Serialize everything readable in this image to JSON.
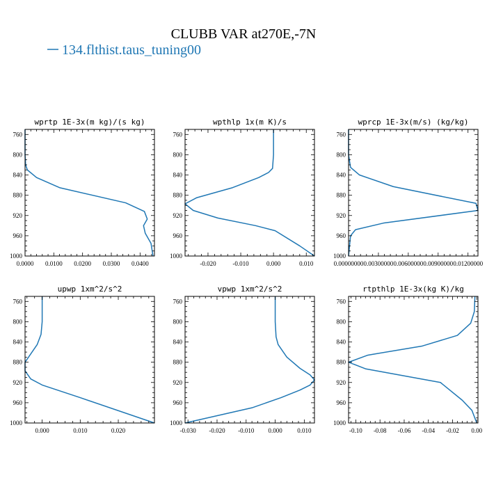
{
  "figure": {
    "title": "CLUBB VAR at270E,-7N",
    "legend_label": "134.flthist.taus_tuning00",
    "legend_color": "#1f77b4"
  },
  "chart_data": [
    {
      "type": "line",
      "title": "wprtp  1E-3x(m kg)/(s kg)",
      "xlim": [
        0.0,
        0.045
      ],
      "ylim": [
        1000,
        750
      ],
      "xticks": [
        0.0,
        0.01,
        0.02,
        0.03,
        0.04
      ],
      "xtick_labels": [
        "0.0000",
        "0.0100",
        "0.0200",
        "0.0300",
        "0.0400"
      ],
      "yticks": [
        760,
        800,
        840,
        880,
        920,
        960,
        1000
      ],
      "ytick_labels": [
        "760",
        "800",
        "840",
        "880",
        "920",
        "960",
        "1000"
      ],
      "series": [
        {
          "color": "#1f77b4",
          "x": [
            0.0,
            0.0,
            0.0002,
            0.0008,
            0.004,
            0.012,
            0.035,
            0.0415,
            0.0425,
            0.0412,
            0.0418,
            0.0438,
            0.0445
          ],
          "y": [
            750,
            800,
            820,
            830,
            845,
            865,
            895,
            912,
            927,
            940,
            955,
            975,
            1000
          ]
        }
      ]
    },
    {
      "type": "line",
      "title": "wpthlp  1x(m K)/s",
      "xlim": [
        -0.027,
        0.0125
      ],
      "ylim": [
        1000,
        750
      ],
      "xticks": [
        -0.02,
        -0.01,
        0.0,
        0.01
      ],
      "xtick_labels": [
        "-0.020",
        "-0.010",
        "0.000",
        "0.010"
      ],
      "yticks": [
        760,
        800,
        840,
        880,
        920,
        960,
        1000
      ],
      "ytick_labels": [
        "760",
        "800",
        "840",
        "880",
        "920",
        "960",
        "1000"
      ],
      "series": [
        {
          "color": "#1f77b4",
          "x": [
            0.0,
            0.0,
            -0.0003,
            -0.0015,
            -0.0045,
            -0.0125,
            -0.0235,
            -0.027,
            -0.0245,
            -0.017,
            -0.0055,
            0.0005,
            0.008,
            0.0125
          ],
          "y": [
            750,
            800,
            827,
            835,
            845,
            865,
            885,
            897,
            910,
            925,
            940,
            950,
            980,
            1000
          ]
        }
      ]
    },
    {
      "type": "line",
      "title": "wprcp  1E-3x(m/s) (kg/kg)",
      "xlim": [
        0.0,
        0.013
      ],
      "ylim": [
        1000,
        750
      ],
      "xticks": [
        0.0,
        0.003,
        0.006,
        0.009,
        0.012
      ],
      "xtick_labels": [
        "0.00000000",
        "0.00300000",
        "0.00600000",
        "0.00900000",
        "0.01200000"
      ],
      "yticks": [
        760,
        800,
        840,
        880,
        920,
        960,
        1000
      ],
      "ytick_labels": [
        "760",
        "800",
        "840",
        "880",
        "920",
        "960",
        "1000"
      ],
      "series": [
        {
          "color": "#1f77b4",
          "x": [
            0.0,
            0.0,
            0.0002,
            0.0011,
            0.0045,
            0.0128,
            0.013,
            0.0035,
            0.0007,
            0.0002,
            0.0
          ],
          "y": [
            750,
            800,
            825,
            840,
            863,
            896,
            910,
            935,
            948,
            960,
            1000
          ]
        }
      ]
    },
    {
      "type": "line",
      "title": "upwp  1xm^2/s^2",
      "xlim": [
        -0.0045,
        0.0295
      ],
      "ylim": [
        1000,
        750
      ],
      "xticks": [
        0.0,
        0.01,
        0.02
      ],
      "xtick_labels": [
        "0.000",
        "0.010",
        "0.020"
      ],
      "yticks": [
        760,
        800,
        840,
        880,
        920,
        960,
        1000
      ],
      "ytick_labels": [
        "760",
        "800",
        "840",
        "880",
        "920",
        "960",
        "1000"
      ],
      "series": [
        {
          "color": "#1f77b4",
          "x": [
            0.0,
            0.0,
            -0.0003,
            -0.0013,
            -0.0045,
            -0.0045,
            -0.003,
            0.0,
            0.01,
            0.0295
          ],
          "y": [
            750,
            800,
            825,
            845,
            880,
            897,
            913,
            925,
            950,
            1000
          ]
        }
      ]
    },
    {
      "type": "line",
      "title": "vpwp  1xm^2/s^2",
      "xlim": [
        -0.031,
        0.0135
      ],
      "ylim": [
        1000,
        750
      ],
      "xticks": [
        -0.03,
        -0.02,
        -0.01,
        0.0,
        0.01
      ],
      "xtick_labels": [
        "-0.030",
        "-0.020",
        "-0.010",
        "0.000",
        "0.010"
      ],
      "yticks": [
        760,
        800,
        840,
        880,
        920,
        960,
        1000
      ],
      "ytick_labels": [
        "760",
        "800",
        "840",
        "880",
        "920",
        "960",
        "1000"
      ],
      "series": [
        {
          "color": "#1f77b4",
          "x": [
            0.0,
            0.0,
            0.0003,
            0.001,
            0.004,
            0.0085,
            0.012,
            0.0135,
            0.012,
            0.0085,
            0.002,
            -0.008,
            -0.031
          ],
          "y": [
            750,
            800,
            830,
            845,
            870,
            892,
            905,
            915,
            925,
            935,
            950,
            970,
            1000
          ]
        }
      ]
    },
    {
      "type": "line",
      "title": "rtpthlp  1E-3x(kg K)/kg",
      "xlim": [
        -0.106,
        0.001
      ],
      "ylim": [
        1000,
        750
      ],
      "xticks": [
        -0.1,
        -0.08,
        -0.06,
        -0.04,
        -0.02,
        0.0
      ],
      "xtick_labels": [
        "-0.10",
        "-0.08",
        "-0.06",
        "-0.04",
        "-0.02",
        "0.00"
      ],
      "yticks": [
        760,
        800,
        840,
        880,
        920,
        960,
        1000
      ],
      "ytick_labels": [
        "760",
        "800",
        "840",
        "880",
        "920",
        "960",
        "1000"
      ],
      "series": [
        {
          "color": "#1f77b4",
          "x": [
            -0.0015,
            -0.002,
            -0.005,
            -0.016,
            -0.045,
            -0.09,
            -0.106,
            -0.092,
            -0.03,
            -0.012,
            -0.004,
            0.0
          ],
          "y": [
            750,
            780,
            803,
            827,
            848,
            866,
            880,
            893,
            920,
            955,
            975,
            1000
          ]
        }
      ]
    }
  ]
}
